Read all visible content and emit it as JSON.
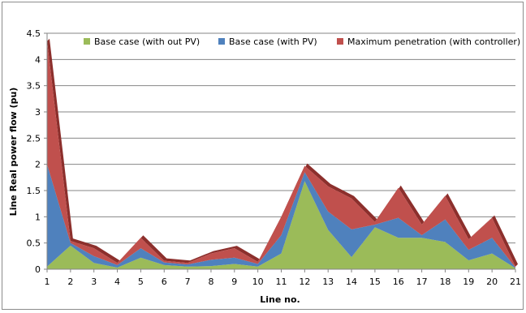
{
  "chart_data": {
    "type": "area",
    "stacked": true,
    "title": "",
    "xlabel": "Line no.",
    "ylabel": "Line Real power flow (pu)",
    "x": [
      1,
      2,
      3,
      4,
      5,
      6,
      7,
      8,
      9,
      10,
      11,
      12,
      13,
      14,
      15,
      16,
      17,
      18,
      19,
      20,
      21
    ],
    "ylim": [
      0,
      4.5
    ],
    "yticks": [
      "0",
      "0.5",
      "1",
      "1.5",
      "2",
      "2.5",
      "3",
      "3.5",
      "4",
      "4.5"
    ],
    "grid": "horizontal",
    "legend_position": "top",
    "series": [
      {
        "name": "Base case (with out PV)",
        "color": "#9bbb59",
        "values": [
          0.05,
          0.45,
          0.12,
          0.03,
          0.22,
          0.08,
          0.05,
          0.06,
          0.1,
          0.05,
          0.3,
          1.68,
          0.75,
          0.23,
          0.8,
          0.6,
          0.6,
          0.52,
          0.17,
          0.3,
          0.02
        ]
      },
      {
        "name": "Base case (with PV)",
        "color": "#4f81bd",
        "values": [
          1.95,
          0.05,
          0.13,
          0.05,
          0.18,
          0.05,
          0.04,
          0.12,
          0.12,
          0.05,
          0.35,
          0.17,
          0.35,
          0.53,
          0.05,
          0.38,
          0.05,
          0.43,
          0.2,
          0.3,
          0.01
        ]
      },
      {
        "name": "Maximum penetration (with controller)",
        "color": "#c0504d",
        "values": [
          2.35,
          0.04,
          0.15,
          0.04,
          0.2,
          0.03,
          0.03,
          0.12,
          0.18,
          0.04,
          0.35,
          0.12,
          0.48,
          0.59,
          0.05,
          0.57,
          0.2,
          0.45,
          0.2,
          0.38,
          0.02
        ]
      }
    ]
  }
}
